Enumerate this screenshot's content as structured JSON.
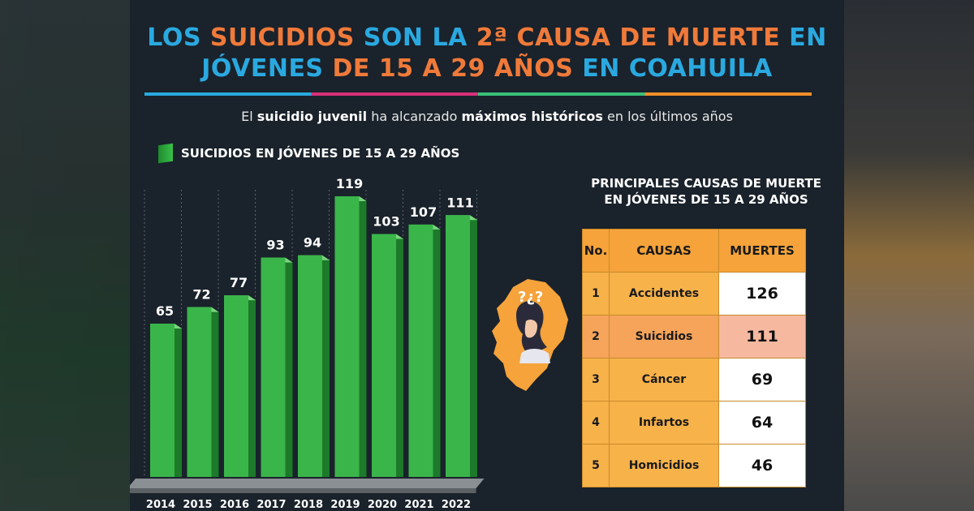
{
  "title": {
    "line1_a": "LOS ",
    "line1_b": "SUICIDIOS",
    "line1_c": " SON LA ",
    "line1_d": "2ª CAUSA DE MUERTE",
    "line1_e": " EN",
    "line2_a": "JÓVENES ",
    "line2_b": "DE 15 A 29 AÑOS",
    "line2_c": " EN COAHUILA"
  },
  "subtitle": {
    "p1": "El ",
    "p2": "suicidio juvenil",
    "p3": " ha alcanzado ",
    "p4": "máximos históricos",
    "p5": " en los últimos años"
  },
  "colors": {
    "title_blue": "#2aa9e0",
    "title_orange": "#f07a3a",
    "bar_green": "#3ab54a",
    "table_orange": "#f5a33a",
    "highlight": "#f6b9a0"
  },
  "chart_data": {
    "type": "bar",
    "legend": "SUICIDIOS EN JÓVENES DE 15 A 29 AÑOS",
    "categories": [
      "2014",
      "2015",
      "2016",
      "2017",
      "2018",
      "2019",
      "2020",
      "2021",
      "2022"
    ],
    "values": [
      65,
      72,
      77,
      93,
      94,
      119,
      103,
      107,
      111
    ],
    "ylim": [
      0,
      119
    ],
    "grid": "vertical dashed lines",
    "title": "",
    "xlabel": "",
    "ylabel": ""
  },
  "table": {
    "title_line1": "PRINCIPALES CAUSAS DE MUERTE",
    "title_line2": "EN JÓVENES DE 15 A 29 AÑOS",
    "headers": [
      "No.",
      "CAUSAS",
      "MUERTES"
    ],
    "rows": [
      {
        "no": "1",
        "cause": "Accidentes",
        "deaths": "126"
      },
      {
        "no": "2",
        "cause": "Suicidios",
        "deaths": "111"
      },
      {
        "no": "3",
        "cause": "Cáncer",
        "deaths": "69"
      },
      {
        "no": "4",
        "cause": "Infartos",
        "deaths": "64"
      },
      {
        "no": "5",
        "cause": "Homicidios",
        "deaths": "46"
      }
    ],
    "highlight_row": 2
  },
  "illustration": {
    "icon": "coahuila-map-thinking-person-icon",
    "glyphs": "?¿?"
  }
}
